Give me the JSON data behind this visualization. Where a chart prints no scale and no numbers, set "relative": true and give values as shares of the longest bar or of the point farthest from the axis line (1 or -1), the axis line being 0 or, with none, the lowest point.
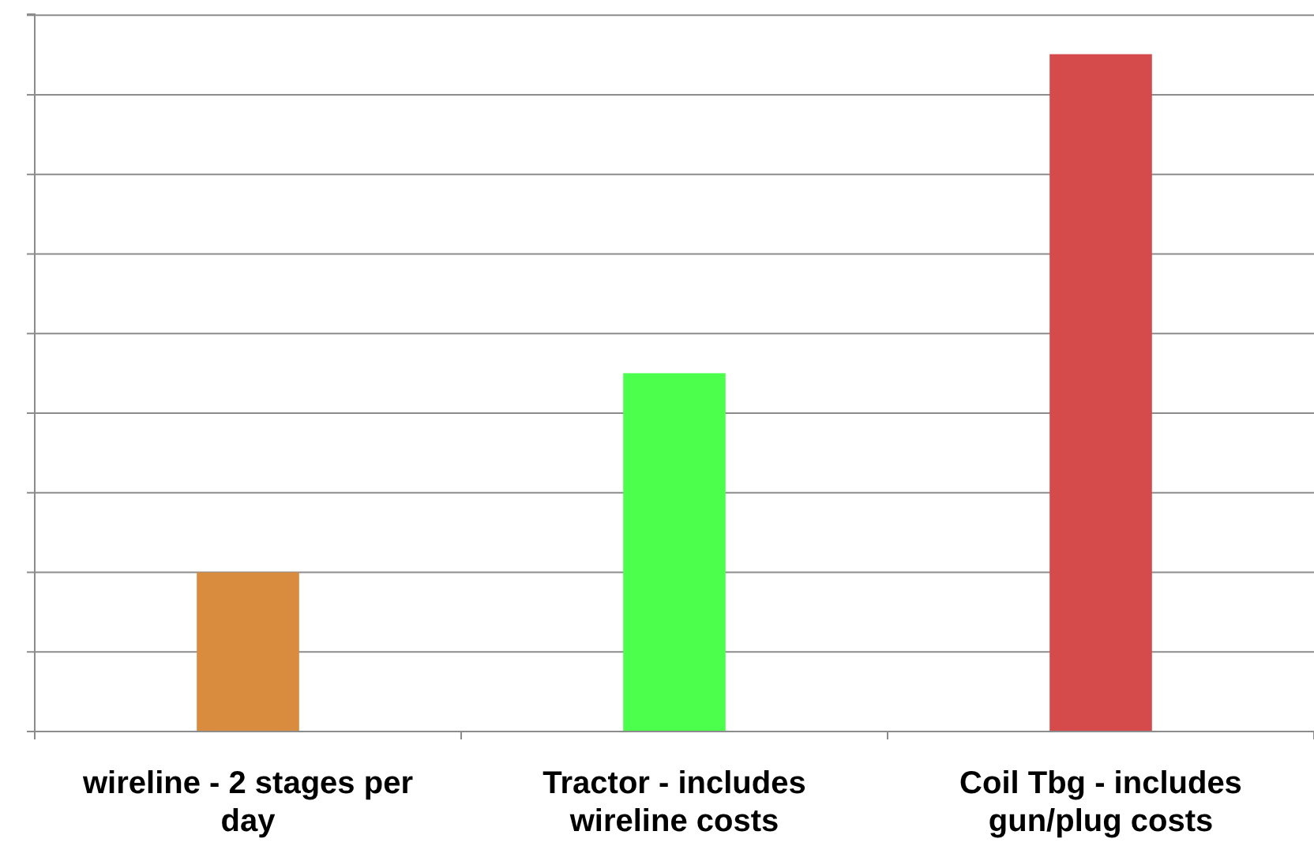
{
  "chart_data": {
    "type": "bar",
    "relative": true,
    "categories": [
      "wireline - 2 stages per day",
      "Tractor - includes wireline costs",
      "Coil Tbg - includes gun/plug costs"
    ],
    "values": [
      0.235,
      0.529,
      1
    ],
    "colors": [
      "#d98c3e",
      "#4cff4c",
      "#d54b4b"
    ],
    "grid": "y"
  }
}
